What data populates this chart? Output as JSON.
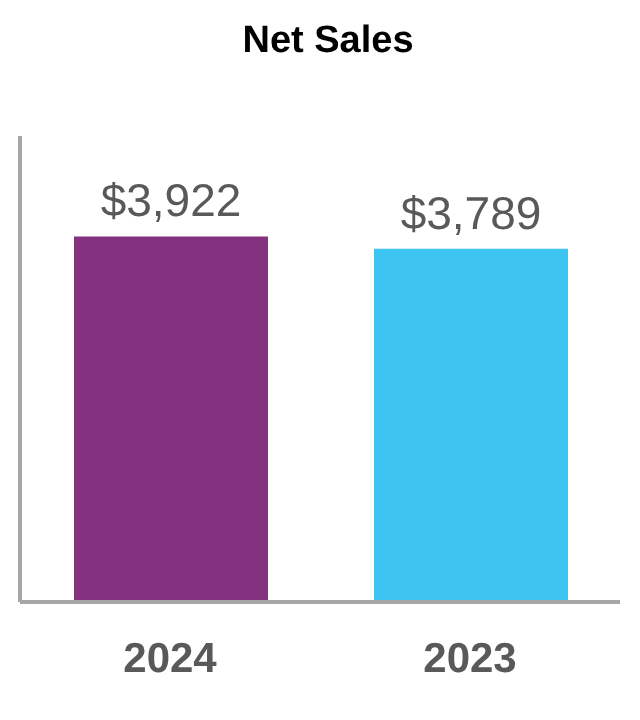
{
  "chart_data": {
    "type": "bar",
    "title": "Net Sales",
    "categories": [
      "2024",
      "2023"
    ],
    "values": [
      3922,
      3789
    ],
    "value_labels": [
      "$3,922",
      "$3,789"
    ],
    "colors": [
      "#84327f",
      "#3ec4f0"
    ],
    "ylim": [
      0,
      5000
    ],
    "tick_labels": "x"
  }
}
